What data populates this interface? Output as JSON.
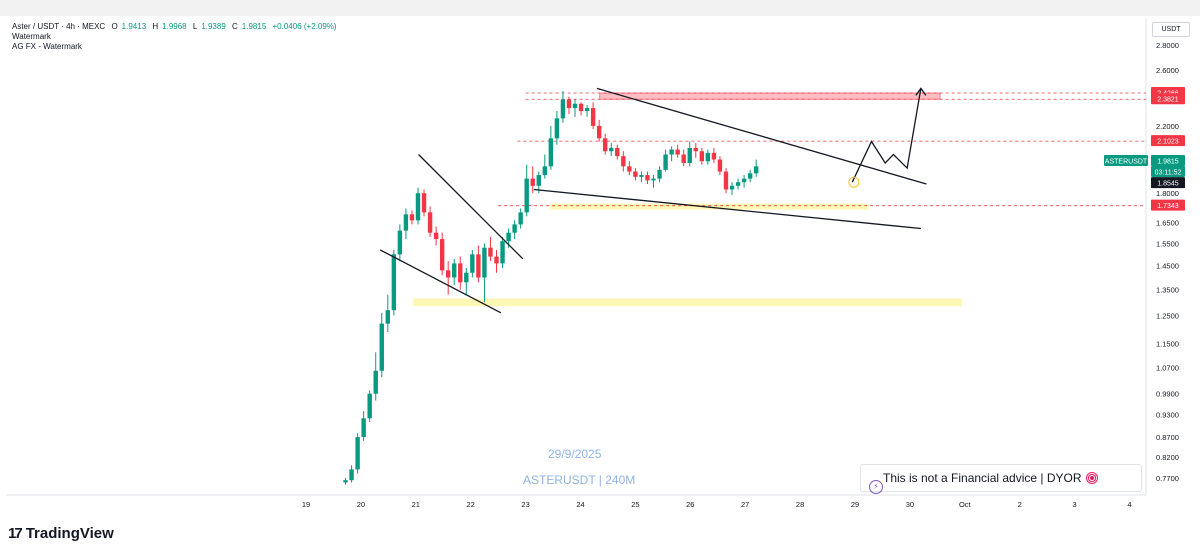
{
  "header": {
    "symbol_line": "Aster / USDT · 4h · MEXC",
    "open_label": "O",
    "open": "1.9413",
    "high_label": "H",
    "high": "1.9968",
    "low_label": "L",
    "low": "1.9389",
    "close_label": "C",
    "close": "1.9815",
    "change": "+0.0406 (+2.09%)",
    "indicator1": "Watermark",
    "indicator2": "AG FX - Watermark"
  },
  "axis_unit": "USDT",
  "watermark": {
    "date": "29/9/2025",
    "symbol": "ASTERUSDT | 240M"
  },
  "disclaimer": "This is not a Financial advice | DYOR",
  "brand": "TradingView",
  "brand_mark": "17",
  "colors": {
    "up": "#089981",
    "down": "#f23645",
    "zone_red": "#f23645",
    "zone_yellow": "#fff176",
    "line": "#131722",
    "tag_red": "#f23645",
    "tag_green": "#089981",
    "tag_black": "#131722"
  },
  "chart_data": {
    "type": "candlestick",
    "yscale": "log",
    "ylim": [
      0.75,
      2.95
    ],
    "y_ticks": [
      "2.8000",
      "2.6000",
      "2.2000",
      "1.8000",
      "1.6500",
      "1.5500",
      "1.4500",
      "1.3500",
      "1.2500",
      "1.1500",
      "1.0700",
      "0.9900",
      "0.9300",
      "0.8700",
      "0.8200",
      "0.7700"
    ],
    "x_ticks": [
      "19",
      "20",
      "21",
      "22",
      "23",
      "24",
      "25",
      "26",
      "27",
      "28",
      "29",
      "30",
      "Oct",
      "2",
      "3",
      "4"
    ],
    "price_tags": [
      {
        "label": "2.4266",
        "value": 2.4266,
        "style": "red"
      },
      {
        "label": "2.3821",
        "value": 2.3821,
        "style": "red"
      },
      {
        "label": "2.1023",
        "value": 2.1023,
        "style": "red"
      },
      {
        "label": "ASTERUSDT",
        "value": 1.9815,
        "style": "green-name"
      },
      {
        "label": "1.9815",
        "value": 1.9815,
        "style": "green"
      },
      {
        "label": "03:11:52",
        "value": 1.94,
        "style": "green-sub"
      },
      {
        "label": "1.8545",
        "value": 1.8545,
        "style": "black"
      },
      {
        "label": "1.7343",
        "value": 1.7343,
        "style": "red"
      }
    ],
    "dashed_levels": [
      2.4266,
      2.3821,
      2.1023,
      1.7343
    ],
    "candles": [
      {
        "x": 19.72,
        "o": 0.76,
        "h": 0.77,
        "l": 0.755,
        "c": 0.765
      },
      {
        "x": 19.83,
        "o": 0.765,
        "h": 0.8,
        "l": 0.76,
        "c": 0.79
      },
      {
        "x": 19.94,
        "o": 0.79,
        "h": 0.88,
        "l": 0.78,
        "c": 0.87
      },
      {
        "x": 20.05,
        "o": 0.87,
        "h": 0.94,
        "l": 0.86,
        "c": 0.92
      },
      {
        "x": 20.16,
        "o": 0.92,
        "h": 1.0,
        "l": 0.91,
        "c": 0.99
      },
      {
        "x": 20.27,
        "o": 0.99,
        "h": 1.12,
        "l": 0.97,
        "c": 1.06
      },
      {
        "x": 20.38,
        "o": 1.06,
        "h": 1.26,
        "l": 1.04,
        "c": 1.22
      },
      {
        "x": 20.49,
        "o": 1.22,
        "h": 1.33,
        "l": 1.19,
        "c": 1.27
      },
      {
        "x": 20.6,
        "o": 1.27,
        "h": 1.52,
        "l": 1.25,
        "c": 1.5
      },
      {
        "x": 20.71,
        "o": 1.5,
        "h": 1.64,
        "l": 1.47,
        "c": 1.61
      },
      {
        "x": 20.82,
        "o": 1.61,
        "h": 1.72,
        "l": 1.57,
        "c": 1.69
      },
      {
        "x": 20.93,
        "o": 1.69,
        "h": 1.71,
        "l": 1.64,
        "c": 1.66
      },
      {
        "x": 21.04,
        "o": 1.66,
        "h": 1.83,
        "l": 1.64,
        "c": 1.8
      },
      {
        "x": 21.15,
        "o": 1.8,
        "h": 1.82,
        "l": 1.68,
        "c": 1.7
      },
      {
        "x": 21.26,
        "o": 1.7,
        "h": 1.73,
        "l": 1.58,
        "c": 1.6
      },
      {
        "x": 21.37,
        "o": 1.6,
        "h": 1.63,
        "l": 1.54,
        "c": 1.57
      },
      {
        "x": 21.48,
        "o": 1.57,
        "h": 1.6,
        "l": 1.41,
        "c": 1.43
      },
      {
        "x": 21.59,
        "o": 1.43,
        "h": 1.47,
        "l": 1.33,
        "c": 1.4
      },
      {
        "x": 21.7,
        "o": 1.4,
        "h": 1.48,
        "l": 1.37,
        "c": 1.46
      },
      {
        "x": 21.81,
        "o": 1.46,
        "h": 1.49,
        "l": 1.35,
        "c": 1.38
      },
      {
        "x": 21.92,
        "o": 1.38,
        "h": 1.44,
        "l": 1.33,
        "c": 1.42
      },
      {
        "x": 22.03,
        "o": 1.42,
        "h": 1.52,
        "l": 1.4,
        "c": 1.5
      },
      {
        "x": 22.14,
        "o": 1.5,
        "h": 1.54,
        "l": 1.38,
        "c": 1.4
      },
      {
        "x": 22.25,
        "o": 1.4,
        "h": 1.55,
        "l": 1.3,
        "c": 1.53
      },
      {
        "x": 22.36,
        "o": 1.53,
        "h": 1.58,
        "l": 1.47,
        "c": 1.49
      },
      {
        "x": 22.47,
        "o": 1.49,
        "h": 1.52,
        "l": 1.42,
        "c": 1.46
      },
      {
        "x": 22.58,
        "o": 1.46,
        "h": 1.58,
        "l": 1.44,
        "c": 1.56
      },
      {
        "x": 22.69,
        "o": 1.56,
        "h": 1.62,
        "l": 1.53,
        "c": 1.6
      },
      {
        "x": 22.8,
        "o": 1.6,
        "h": 1.66,
        "l": 1.57,
        "c": 1.64
      },
      {
        "x": 22.91,
        "o": 1.64,
        "h": 1.72,
        "l": 1.62,
        "c": 1.7
      },
      {
        "x": 23.02,
        "o": 1.7,
        "h": 1.96,
        "l": 1.68,
        "c": 1.88
      },
      {
        "x": 23.13,
        "o": 1.88,
        "h": 1.95,
        "l": 1.8,
        "c": 1.84
      },
      {
        "x": 23.24,
        "o": 1.84,
        "h": 1.92,
        "l": 1.8,
        "c": 1.9
      },
      {
        "x": 23.35,
        "o": 1.9,
        "h": 2.02,
        "l": 1.88,
        "c": 1.95
      },
      {
        "x": 23.46,
        "o": 1.95,
        "h": 2.2,
        "l": 1.93,
        "c": 2.12
      },
      {
        "x": 23.57,
        "o": 2.12,
        "h": 2.3,
        "l": 2.08,
        "c": 2.25
      },
      {
        "x": 23.68,
        "o": 2.25,
        "h": 2.44,
        "l": 2.22,
        "c": 2.38
      },
      {
        "x": 23.79,
        "o": 2.38,
        "h": 2.4,
        "l": 2.28,
        "c": 2.32
      },
      {
        "x": 23.9,
        "o": 2.32,
        "h": 2.38,
        "l": 2.26,
        "c": 2.35
      },
      {
        "x": 24.01,
        "o": 2.35,
        "h": 2.36,
        "l": 2.27,
        "c": 2.3
      },
      {
        "x": 24.12,
        "o": 2.3,
        "h": 2.34,
        "l": 2.26,
        "c": 2.32
      },
      {
        "x": 24.23,
        "o": 2.32,
        "h": 2.36,
        "l": 2.18,
        "c": 2.2
      },
      {
        "x": 24.34,
        "o": 2.2,
        "h": 2.24,
        "l": 2.1,
        "c": 2.12
      },
      {
        "x": 24.45,
        "o": 2.12,
        "h": 2.15,
        "l": 2.02,
        "c": 2.04
      },
      {
        "x": 24.56,
        "o": 2.04,
        "h": 2.09,
        "l": 2.01,
        "c": 2.06
      },
      {
        "x": 24.67,
        "o": 2.06,
        "h": 2.08,
        "l": 1.99,
        "c": 2.01
      },
      {
        "x": 24.78,
        "o": 2.01,
        "h": 2.04,
        "l": 1.92,
        "c": 1.95
      },
      {
        "x": 24.89,
        "o": 1.95,
        "h": 1.98,
        "l": 1.9,
        "c": 1.92
      },
      {
        "x": 25.0,
        "o": 1.92,
        "h": 1.94,
        "l": 1.87,
        "c": 1.89
      },
      {
        "x": 25.11,
        "o": 1.89,
        "h": 1.92,
        "l": 1.86,
        "c": 1.9
      },
      {
        "x": 25.22,
        "o": 1.9,
        "h": 1.92,
        "l": 1.85,
        "c": 1.87
      },
      {
        "x": 25.33,
        "o": 1.87,
        "h": 1.9,
        "l": 1.83,
        "c": 1.88
      },
      {
        "x": 25.44,
        "o": 1.88,
        "h": 1.95,
        "l": 1.86,
        "c": 1.93
      },
      {
        "x": 25.55,
        "o": 1.93,
        "h": 2.05,
        "l": 1.92,
        "c": 2.02
      },
      {
        "x": 25.66,
        "o": 2.02,
        "h": 2.07,
        "l": 1.98,
        "c": 2.05
      },
      {
        "x": 25.77,
        "o": 2.05,
        "h": 2.08,
        "l": 2.0,
        "c": 2.02
      },
      {
        "x": 25.88,
        "o": 2.02,
        "h": 2.05,
        "l": 1.95,
        "c": 1.97
      },
      {
        "x": 25.99,
        "o": 1.97,
        "h": 2.1,
        "l": 1.95,
        "c": 2.06
      },
      {
        "x": 26.1,
        "o": 2.06,
        "h": 2.09,
        "l": 2.0,
        "c": 2.04
      },
      {
        "x": 26.21,
        "o": 2.04,
        "h": 2.06,
        "l": 1.96,
        "c": 1.98
      },
      {
        "x": 26.32,
        "o": 1.98,
        "h": 2.05,
        "l": 1.96,
        "c": 2.03
      },
      {
        "x": 26.43,
        "o": 2.03,
        "h": 2.06,
        "l": 1.97,
        "c": 1.99
      },
      {
        "x": 26.54,
        "o": 1.99,
        "h": 2.01,
        "l": 1.9,
        "c": 1.92
      },
      {
        "x": 26.65,
        "o": 1.92,
        "h": 1.94,
        "l": 1.8,
        "c": 1.82
      },
      {
        "x": 26.76,
        "o": 1.82,
        "h": 1.86,
        "l": 1.79,
        "c": 1.84
      },
      {
        "x": 26.87,
        "o": 1.84,
        "h": 1.88,
        "l": 1.82,
        "c": 1.86
      },
      {
        "x": 26.98,
        "o": 1.86,
        "h": 1.9,
        "l": 1.83,
        "c": 1.88
      },
      {
        "x": 27.09,
        "o": 1.88,
        "h": 1.93,
        "l": 1.86,
        "c": 1.91
      },
      {
        "x": 27.2,
        "o": 1.91,
        "h": 1.99,
        "l": 1.89,
        "c": 1.95
      }
    ],
    "zones": [
      {
        "color": "red",
        "x1": 24.35,
        "x2": 30.55,
        "y1": 2.3821,
        "y2": 2.4266
      },
      {
        "color": "yellow",
        "x1": 23.45,
        "x2": 29.25,
        "y1": 1.725,
        "y2": 1.745
      },
      {
        "color": "yellow",
        "x1": 20.95,
        "x2": 30.95,
        "y1": 1.285,
        "y2": 1.315
      }
    ],
    "trendlines": [
      {
        "x1": 20.35,
        "y1": 1.52,
        "x2": 22.55,
        "y2": 1.26
      },
      {
        "x1": 21.05,
        "y1": 2.02,
        "x2": 22.95,
        "y2": 1.48
      },
      {
        "x1": 24.3,
        "y1": 2.46,
        "x2": 30.3,
        "y2": 1.85
      },
      {
        "x1": 23.15,
        "y1": 1.82,
        "x2": 30.2,
        "y2": 1.62
      }
    ],
    "projection": [
      {
        "x": 28.95,
        "y": 1.86
      },
      {
        "x": 29.3,
        "y": 2.1
      },
      {
        "x": 29.55,
        "y": 1.97
      },
      {
        "x": 29.7,
        "y": 2.02
      },
      {
        "x": 29.95,
        "y": 1.94
      },
      {
        "x": 30.2,
        "y": 2.46
      }
    ]
  }
}
